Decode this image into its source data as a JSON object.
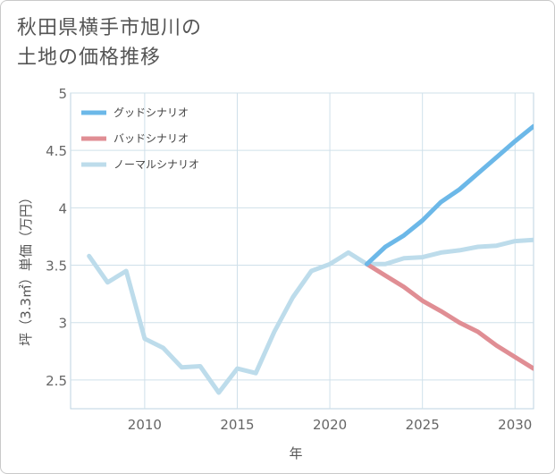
{
  "chart_data": {
    "type": "line",
    "title": "秋田県横手市旭川の土地の価格推移",
    "title_lines": [
      "秋田県横手市旭川の",
      "土地の価格推移"
    ],
    "xlabel": "年",
    "ylabel": "坪（3.3㎡）単価（万円）",
    "xlim": [
      2006,
      2031
    ],
    "ylim": [
      2.25,
      5
    ],
    "xticks": [
      2010,
      2015,
      2020,
      2025,
      2030
    ],
    "yticks": [
      2.5,
      3,
      3.5,
      4,
      4.5,
      5
    ],
    "ytick_labels": [
      "2.5",
      "3",
      "3.5",
      "4",
      "4.5",
      "5"
    ],
    "grid": true,
    "legend_position": "top-left",
    "series": [
      {
        "name": "グッドシナリオ",
        "color": "#6cb8e8",
        "x": [
          2022,
          2023,
          2024,
          2025,
          2026,
          2027,
          2028,
          2029,
          2030,
          2031
        ],
        "values": [
          3.51,
          3.66,
          3.76,
          3.89,
          4.05,
          4.16,
          4.3,
          4.44,
          4.58,
          4.71
        ]
      },
      {
        "name": "バッドシナリオ",
        "color": "#e08e94",
        "x": [
          2022,
          2023,
          2024,
          2025,
          2026,
          2027,
          2028,
          2029,
          2030,
          2031
        ],
        "values": [
          3.51,
          3.41,
          3.31,
          3.19,
          3.1,
          3.0,
          2.92,
          2.8,
          2.7,
          2.6
        ]
      },
      {
        "name": "ノーマルシナリオ",
        "color": "#bddceb",
        "x": [
          2007,
          2008,
          2009,
          2010,
          2011,
          2012,
          2013,
          2014,
          2015,
          2016,
          2017,
          2018,
          2019,
          2020,
          2021,
          2022,
          2023,
          2024,
          2025,
          2026,
          2027,
          2028,
          2029,
          2030,
          2031
        ],
        "values": [
          3.58,
          3.35,
          3.45,
          2.86,
          2.78,
          2.61,
          2.62,
          2.39,
          2.6,
          2.56,
          2.92,
          3.22,
          3.45,
          3.51,
          3.61,
          3.51,
          3.51,
          3.56,
          3.57,
          3.61,
          3.63,
          3.66,
          3.67,
          3.71,
          3.72
        ]
      }
    ]
  }
}
